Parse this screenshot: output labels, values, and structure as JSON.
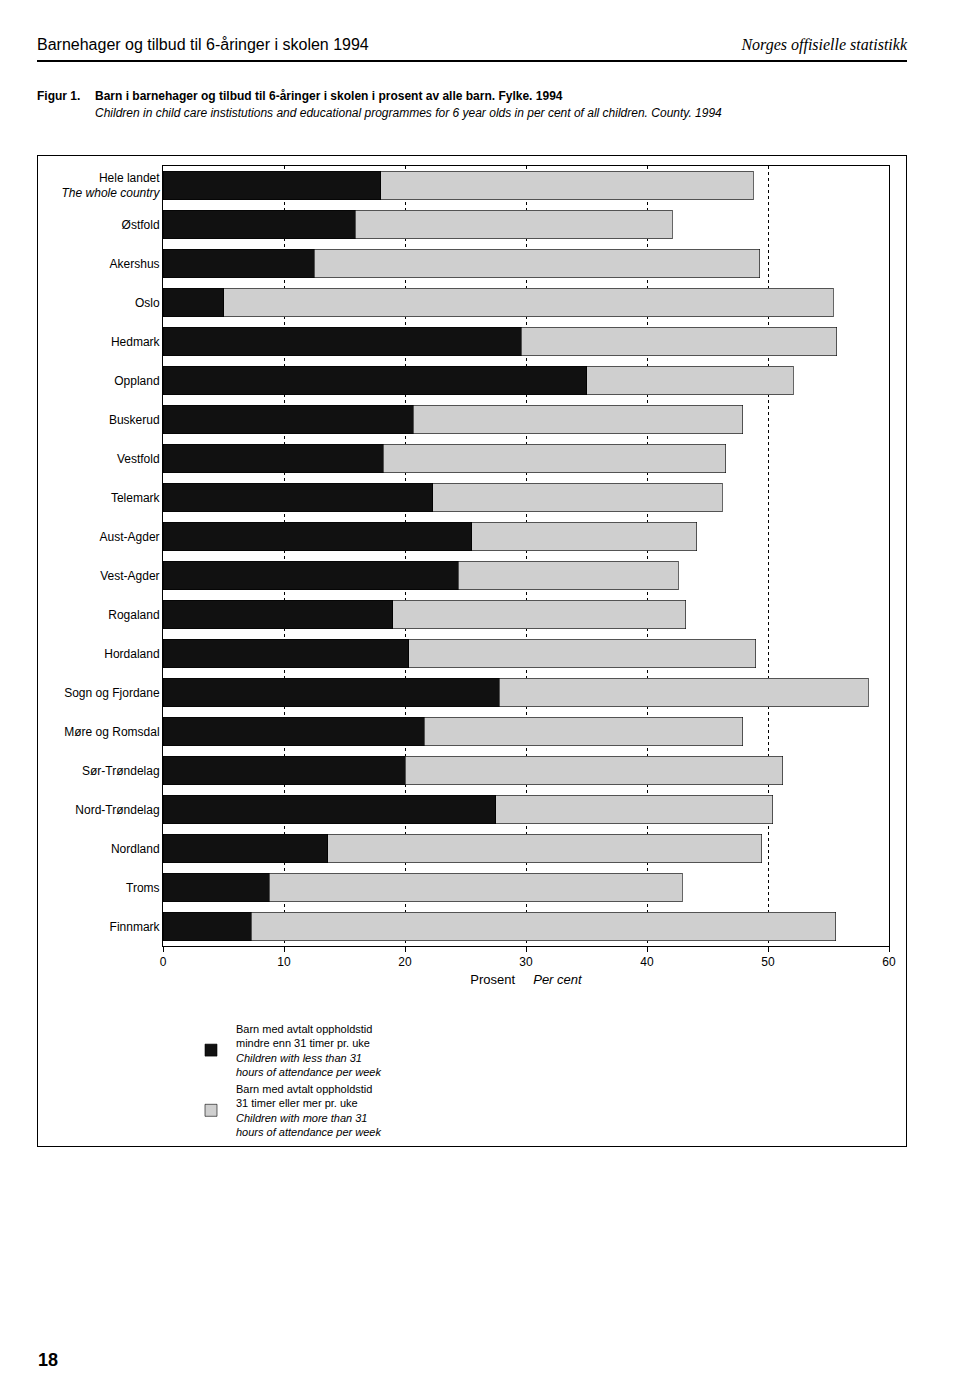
{
  "page": {
    "header_left": "Barnehager og tilbud til 6-åringer i skolen 1994",
    "header_right": "Norges offisielle statistikk",
    "figure_label": "Figur 1.",
    "page_number": 18
  },
  "chart_data": {
    "type": "bar",
    "orientation": "horizontal",
    "stacked": true,
    "title": "Barn i barnehager og tilbud til 6-åringer i skolen i prosent av alle barn. Fylke. 1994",
    "subtitle": "Children in child care instistutions and educational programmes for 6 year olds in per cent of all children. County. 1994",
    "xlabel": "Prosent",
    "xlabel_en": "Per cent",
    "categories": [
      "Hele landet\nThe whole country",
      "Østfold",
      "Akershus",
      "Oslo",
      "Hedmark",
      "Oppland",
      "Buskerud",
      "Vestfold",
      "Telemark",
      "Aust-Agder",
      "Vest-Agder",
      "Rogaland",
      "Hordaland",
      "Sogn og Fjordane",
      "Møre og Romsdal",
      "Sør-Trøndelag",
      "Nord-Trøndelag",
      "Nordland",
      "Troms",
      "Finnmark"
    ],
    "series": [
      {
        "name": "Barn med avtalt oppholdstid\nmindre enn 31 timer pr. uke",
        "name_en": "Children with less than 31\nhours of attendance per week",
        "color": "#111111",
        "values": [
          18.0,
          15.9,
          12.5,
          5.0,
          29.6,
          35.0,
          20.7,
          18.2,
          22.3,
          25.5,
          24.4,
          19.0,
          20.3,
          27.8,
          21.6,
          20.0,
          27.5,
          13.6,
          8.8,
          7.3
        ]
      },
      {
        "name": "Barn med avtalt oppholdstid\n31 timer eller mer pr. uke",
        "name_en": "Children with more than 31\nhours of attendance per week",
        "color": "#cfcfcf",
        "values": [
          30.8,
          26.2,
          36.8,
          50.4,
          26.1,
          17.1,
          27.2,
          28.3,
          23.9,
          18.6,
          18.2,
          24.2,
          28.7,
          30.5,
          26.3,
          31.2,
          22.9,
          35.9,
          34.1,
          48.3
        ]
      }
    ],
    "xlim": [
      0,
      60
    ],
    "xticks": [
      0,
      10,
      20,
      30,
      40,
      50,
      60
    ],
    "grid": true,
    "legend": "bottom"
  }
}
